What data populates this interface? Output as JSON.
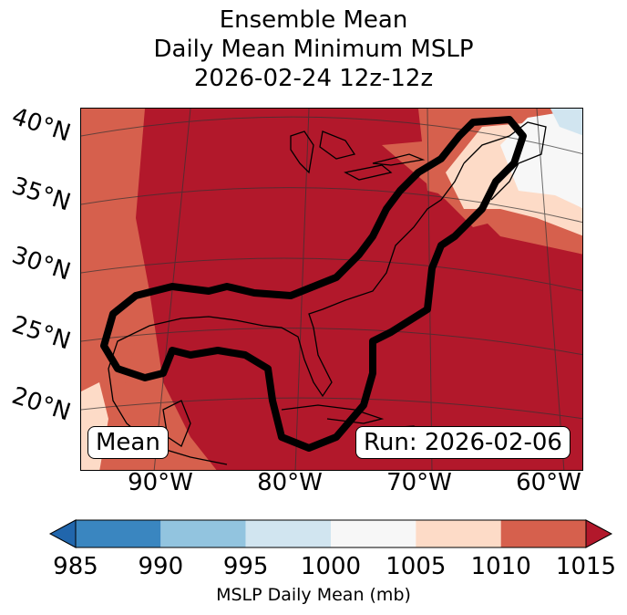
{
  "chart_data": {
    "type": "heatmap",
    "title_lines": [
      "Ensemble Mean",
      "Daily Mean Minimum MSLP",
      "2026-02-24 12z-12z"
    ],
    "region": {
      "lon_range": [
        -95,
        -60
      ],
      "lat_range": [
        15,
        40
      ]
    },
    "lat_ticks": [
      "40°N",
      "35°N",
      "30°N",
      "25°N",
      "20°N"
    ],
    "lon_ticks": [
      "90°W",
      "80°W",
      "70°W",
      "60°W"
    ],
    "mean_label": "Mean",
    "run_label": "Run: 2026-02-06",
    "colorbar": {
      "label": "MSLP Daily Mean (mb)",
      "ticks": [
        "985",
        "990",
        "995",
        "1000",
        "1005",
        "1010",
        "1015"
      ],
      "levels": [
        985,
        990,
        995,
        1000,
        1005,
        1010,
        1015
      ],
      "colors": [
        "#3a86c0",
        "#92c4df",
        "#d1e5f0",
        "#f7f7f7",
        "#fddbc7",
        "#d6604d",
        "#b2182b"
      ],
      "extend": "both",
      "under_color": "#2166ac",
      "over_color": "#b2182b"
    },
    "contour": {
      "style": "thick black outline",
      "description": "region enclosing Gulf of Mexico and US East Coast"
    }
  }
}
